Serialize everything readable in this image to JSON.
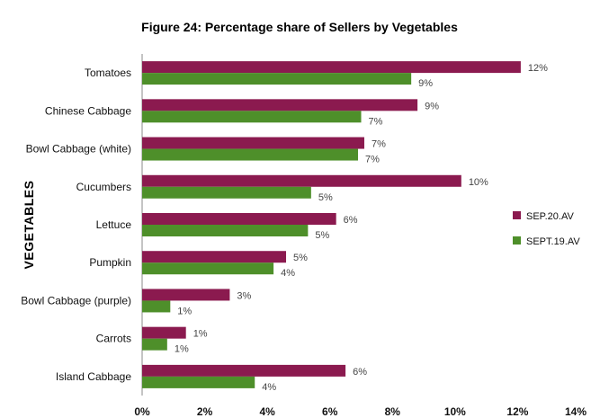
{
  "chart_data": {
    "type": "bar",
    "orientation": "horizontal",
    "title": "Figure 24: Percentage share of Sellers by Vegetables",
    "xlabel": "",
    "ylabel": "VEGETABLES",
    "xlim": [
      0,
      14
    ],
    "xticks": [
      "0%",
      "2%",
      "4%",
      "6%",
      "8%",
      "10%",
      "12%",
      "14%"
    ],
    "grid": false,
    "legend_position": "right",
    "categories": [
      "Tomatoes",
      "Chinese Cabbage",
      "Bowl Cabbage (white)",
      "Cucumbers",
      "Lettuce",
      "Pumpkin",
      "Bowl Cabbage (purple)",
      "Carrots",
      "Island Cabbage"
    ],
    "series": [
      {
        "name": "SEP.20.AV",
        "color": "#8B1A4F",
        "values": [
          12.1,
          8.8,
          7.1,
          10.2,
          6.2,
          4.6,
          2.8,
          1.4,
          6.5
        ],
        "labels": [
          "12%",
          "9%",
          "7%",
          "10%",
          "6%",
          "5%",
          "3%",
          "1%",
          "6%"
        ]
      },
      {
        "name": "SEPT.19.AV",
        "color": "#4E8F2A",
        "values": [
          8.6,
          7.0,
          6.9,
          5.4,
          5.3,
          4.2,
          0.9,
          0.8,
          3.6
        ],
        "labels": [
          "9%",
          "7%",
          "7%",
          "5%",
          "5%",
          "4%",
          "1%",
          "1%",
          "4%"
        ]
      }
    ]
  }
}
